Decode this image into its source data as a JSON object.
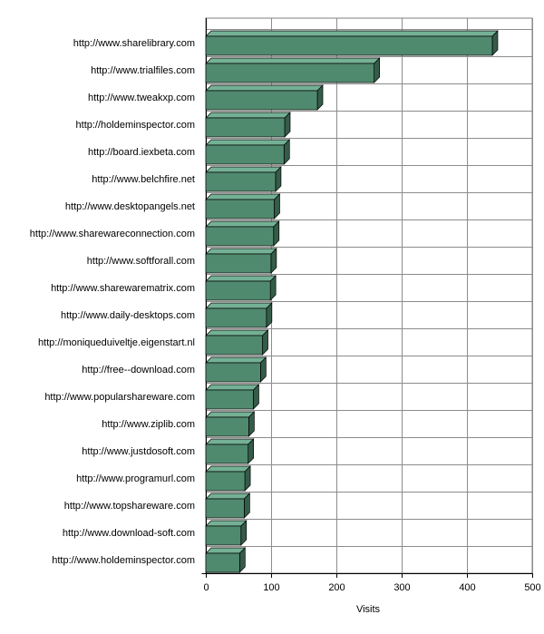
{
  "chart_data": {
    "type": "bar",
    "orientation": "horizontal",
    "categories": [
      "http://www.sharelibrary.com",
      "http://www.trialfiles.com",
      "http://www.tweakxp.com",
      "http://holdeminspector.com",
      "http://board.iexbeta.com",
      "http://www.belchfire.net",
      "http://www.desktopangels.net",
      "http://www.shareware­connection.com",
      "http://www.softforall.com",
      "http://www.sharewarematrix.com",
      "http://www.daily-desktops.com",
      "http://moniqueduiveltje.eigenstart.nl",
      "http://free--download.com",
      "http://www.popularshareware.com",
      "http://www.ziplib.com",
      "http://www.justdosoft.com",
      "http://www.programurl.com",
      "http://www.topshareware.com",
      "http://www.download-soft.com",
      "http://www.holdeminspector.com"
    ],
    "values": [
      443,
      262,
      175,
      125,
      124,
      111,
      109,
      108,
      104,
      103,
      97,
      91,
      88,
      77,
      70,
      69,
      64,
      63,
      58,
      56
    ],
    "title": "",
    "xlabel": "Visits",
    "ylabel": "",
    "xlim": [
      0,
      500
    ],
    "xticks": [
      0,
      100,
      200,
      300,
      400,
      500
    ],
    "grid": true,
    "legend": "none",
    "bar_color": "#508a6e"
  }
}
